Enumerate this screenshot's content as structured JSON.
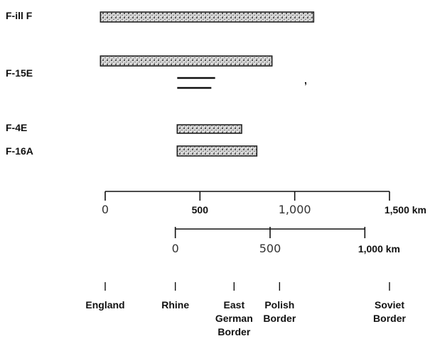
{
  "chart_data": {
    "type": "bar",
    "orientation": "horizontal",
    "title": "",
    "aircraft": [
      {
        "label": "F-ill F",
        "bars": [
          [
            -25,
            1100
          ]
        ]
      },
      {
        "label": "F-15E",
        "bars": [
          [
            -25,
            880
          ]
        ],
        "lines": [
          [
            380,
            580
          ],
          [
            380,
            560
          ]
        ]
      },
      {
        "label": "F-4E",
        "bars": [
          [
            380,
            720
          ]
        ]
      },
      {
        "label": "F-16A",
        "bars": [
          [
            380,
            800
          ]
        ]
      }
    ],
    "stray_mark": ",",
    "upper_axis": {
      "unit": "km",
      "ticks": [
        {
          "value": 0,
          "label": "0",
          "style": "light"
        },
        {
          "value": 500,
          "label": "500",
          "style": "bold"
        },
        {
          "value": 1000,
          "label": "1,000",
          "style": "light"
        },
        {
          "value": 1500,
          "label": "1,500 km",
          "style": "bold"
        }
      ]
    },
    "lower_axis": {
      "origin_km": 370,
      "ticks": [
        {
          "value": 0,
          "label": "0",
          "style": "light"
        },
        {
          "value": 500,
          "label": "500",
          "style": "light"
        },
        {
          "value": 1000,
          "label": "1,000 km",
          "style": "bold"
        }
      ]
    },
    "places": [
      {
        "name": "England",
        "lines": [
          "England"
        ],
        "km": 0
      },
      {
        "name": "Rhine",
        "lines": [
          "Rhine"
        ],
        "km": 370
      },
      {
        "name": "East German Border",
        "lines": [
          "East",
          "German",
          "Border"
        ],
        "km": 680
      },
      {
        "name": "Polish Border",
        "lines": [
          "Polish",
          "Border"
        ],
        "km": 920
      },
      {
        "name": "Soviet Border",
        "lines": [
          "Soviet",
          "Border"
        ],
        "km": 1500
      }
    ]
  }
}
